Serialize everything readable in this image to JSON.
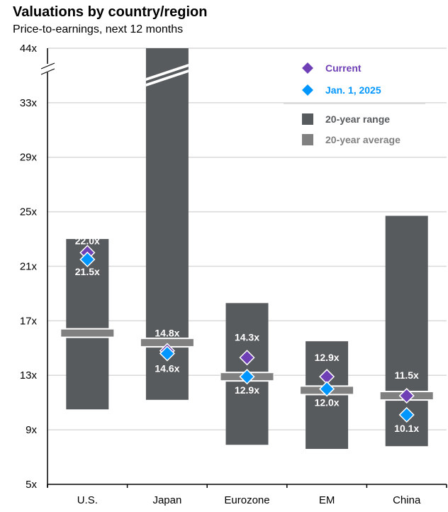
{
  "header": {
    "title": "Valuations by country/region",
    "subtitle": "Price-to-earnings, next 12 months"
  },
  "colors": {
    "range": "#585b5e",
    "average": "#808080",
    "current": "#6f3fb5",
    "jan2025": "#0096ff",
    "grid": "#d9d9d9",
    "axis": "#000000"
  },
  "chart_data": {
    "type": "range-bar",
    "title": "Valuations by country/region",
    "subtitle": "Price-to-earnings, next 12 months",
    "xlabel": "",
    "ylabel": "",
    "categories": [
      "U.S.",
      "Japan",
      "Eurozone",
      "EM",
      "China"
    ],
    "y_ticks": [
      "5x",
      "9x",
      "13x",
      "17x",
      "21x",
      "25x",
      "29x",
      "33x",
      "44x"
    ],
    "y_tick_values": [
      5,
      9,
      13,
      17,
      21,
      25,
      29,
      33,
      44
    ],
    "ylim": [
      5,
      44
    ],
    "axis_break": [
      33,
      44
    ],
    "grid": true,
    "legend_position": "top-right",
    "legend": [
      {
        "key": "current",
        "label": "Current",
        "shape": "diamond"
      },
      {
        "key": "jan2025",
        "label": "Jan. 1, 2025",
        "shape": "diamond"
      },
      {
        "key": "range",
        "label": "20-year range",
        "shape": "square"
      },
      {
        "key": "average",
        "label": "20-year average",
        "shape": "square"
      }
    ],
    "series": [
      {
        "name": "20-year range high",
        "values": [
          23.0,
          44.0,
          18.3,
          15.5,
          24.7
        ]
      },
      {
        "name": "20-year range low",
        "values": [
          10.5,
          11.2,
          7.9,
          7.6,
          7.8
        ]
      },
      {
        "name": "20-year average",
        "values": [
          16.1,
          15.4,
          12.9,
          11.9,
          11.5
        ]
      },
      {
        "name": "Current",
        "values": [
          22.0,
          14.8,
          14.3,
          12.9,
          11.5
        ]
      },
      {
        "name": "Jan. 1, 2025",
        "values": [
          21.5,
          14.6,
          12.9,
          12.0,
          10.1
        ]
      }
    ],
    "data_labels": {
      "current": [
        "22.0x",
        "14.8x",
        "14.3x",
        "12.9x",
        "11.5x"
      ],
      "jan2025": [
        "21.5x",
        "14.6x",
        "12.9x",
        "12.0x",
        "10.1x"
      ]
    },
    "range_exceeds_axis": [
      false,
      true,
      false,
      false,
      false
    ]
  }
}
